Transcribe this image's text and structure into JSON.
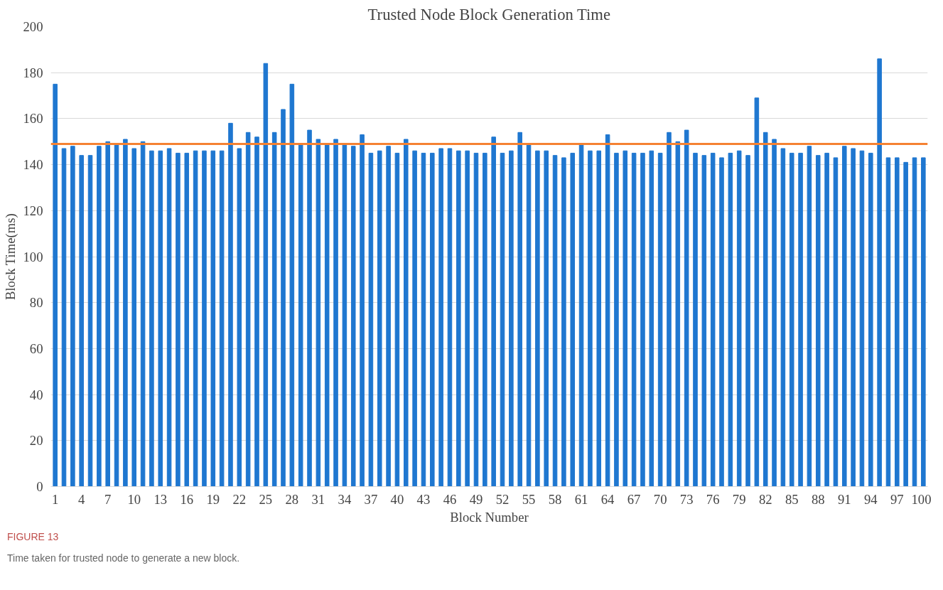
{
  "chart_data": {
    "type": "bar",
    "title": "Trusted Node Block Generation Time",
    "xlabel": "Block Number",
    "ylabel": "Block Time(ms)",
    "categories": [
      "1",
      null,
      null,
      "4",
      null,
      null,
      "7",
      null,
      null,
      "10",
      null,
      null,
      "13",
      null,
      null,
      "16",
      null,
      null,
      "19",
      null,
      null,
      "22",
      null,
      null,
      "25",
      null,
      null,
      "28",
      null,
      null,
      "31",
      null,
      null,
      "34",
      null,
      null,
      "37",
      null,
      null,
      "40",
      null,
      null,
      "43",
      null,
      null,
      "46",
      null,
      null,
      "49",
      null,
      null,
      "52",
      null,
      null,
      "55",
      null,
      null,
      "58",
      null,
      null,
      "61",
      null,
      null,
      "64",
      null,
      null,
      "67",
      null,
      null,
      "70",
      null,
      null,
      "73",
      null,
      null,
      "76",
      null,
      null,
      "79",
      null,
      null,
      "82",
      null,
      null,
      "85",
      null,
      null,
      "88",
      null,
      null,
      "91",
      null,
      null,
      "94",
      null,
      null,
      "97",
      null,
      null,
      "100"
    ],
    "values": [
      175,
      147,
      148,
      144,
      144,
      148,
      150,
      149,
      151,
      147,
      150,
      146,
      146,
      147,
      145,
      145,
      146,
      146,
      146,
      146,
      158,
      147,
      154,
      152,
      184,
      154,
      164,
      175,
      149,
      155,
      151,
      149,
      151,
      149,
      148,
      153,
      145,
      146,
      148,
      145,
      151,
      146,
      145,
      145,
      147,
      147,
      146,
      146,
      145,
      145,
      152,
      145,
      146,
      154,
      149,
      146,
      146,
      144,
      143,
      145,
      149,
      146,
      146,
      153,
      145,
      146,
      145,
      145,
      146,
      145,
      154,
      150,
      155,
      145,
      144,
      145,
      143,
      145,
      146,
      144,
      169,
      154,
      151,
      147,
      145,
      145,
      148,
      144,
      145,
      143,
      148,
      147,
      146,
      145,
      186,
      143,
      143,
      141,
      143,
      143
    ],
    "color": "#1f77d0",
    "ylim": [
      0,
      200
    ],
    "yticks": [
      0,
      20,
      40,
      60,
      80,
      100,
      120,
      140,
      160,
      180,
      200
    ],
    "grid": "y",
    "ref_lines": [
      {
        "axis": "y",
        "value": 149,
        "label": null,
        "color": "#f58232"
      }
    ],
    "annotations": [
      "FIGURE 13",
      "Time taken for trusted node to generate a new block."
    ]
  }
}
